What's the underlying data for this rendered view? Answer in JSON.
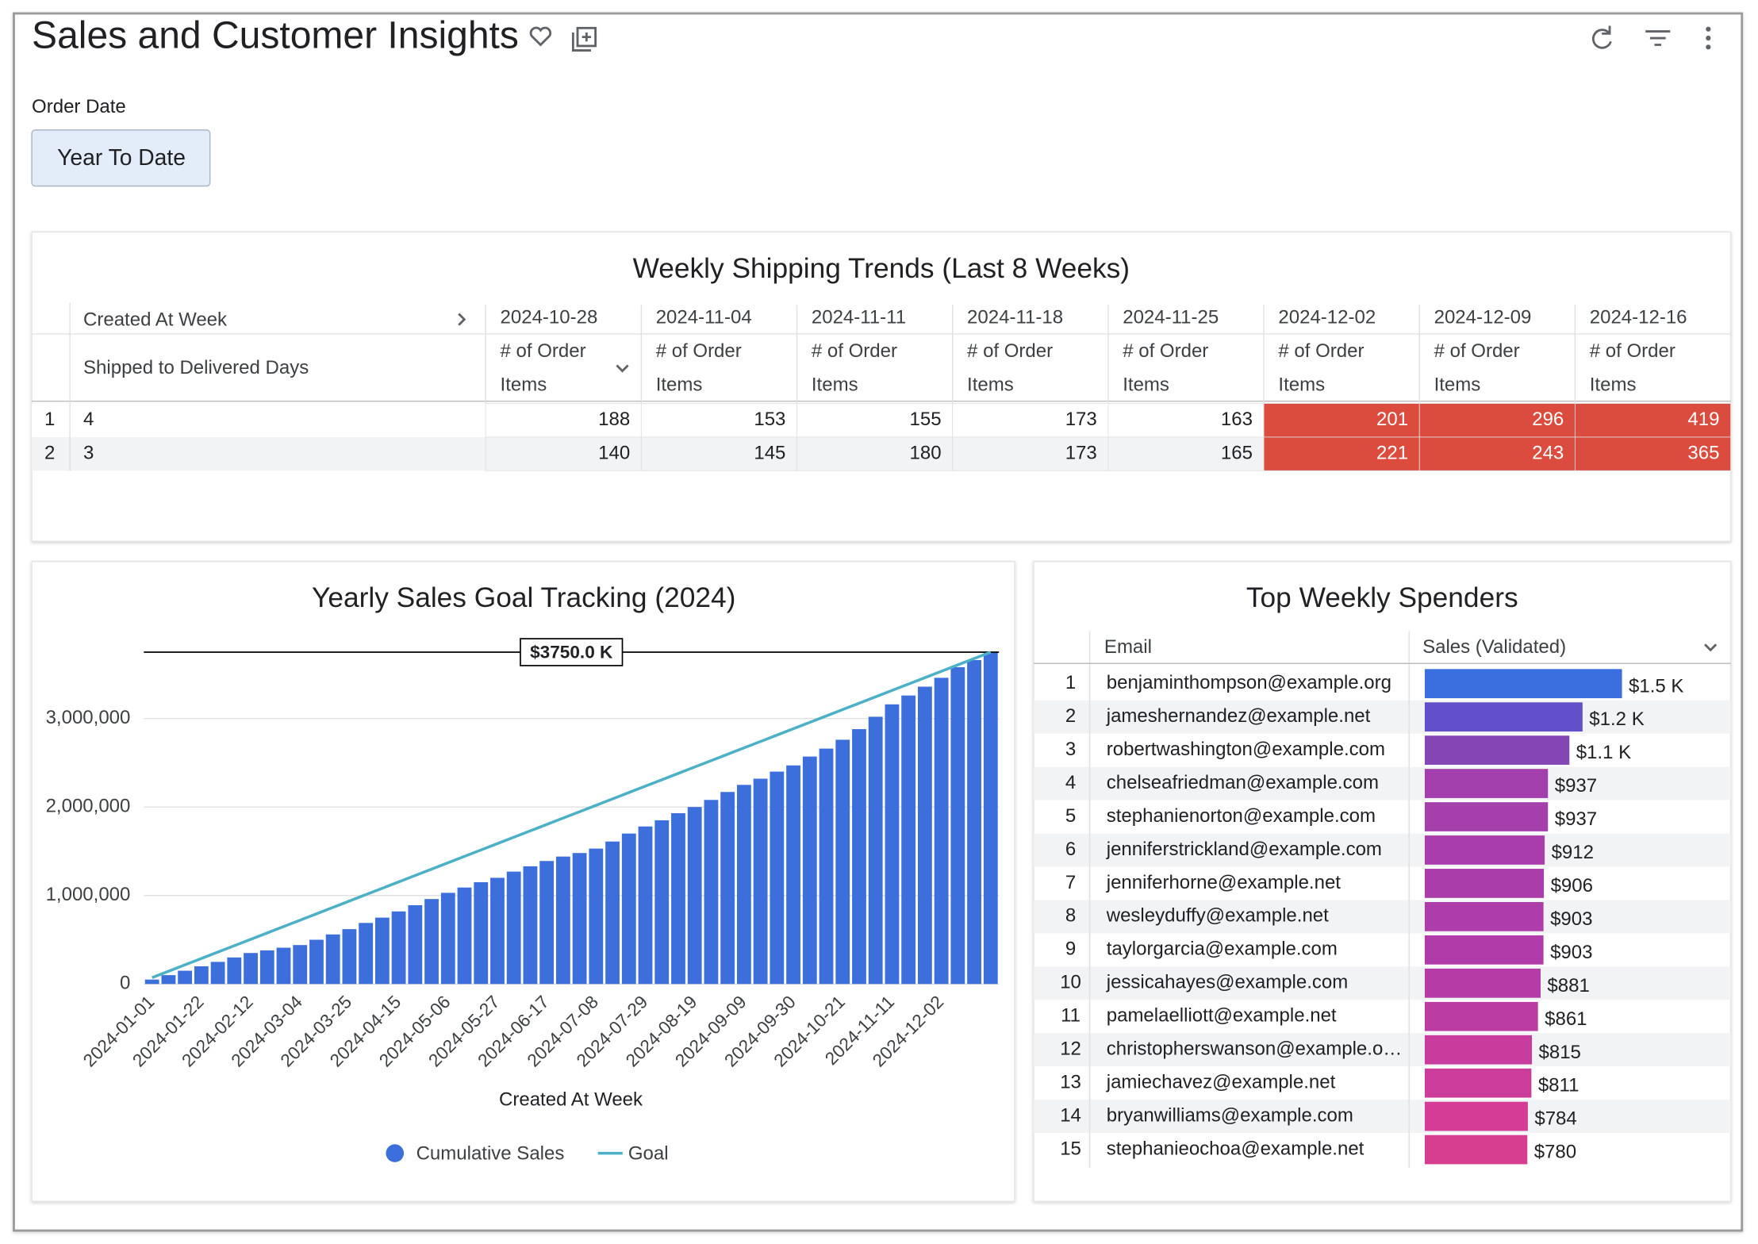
{
  "header": {
    "title": "Sales and Customer Insights",
    "filter_label": "Order Date",
    "filter_value": "Year To Date"
  },
  "shipping_table": {
    "title": "Weekly Shipping Trends (Last 8 Weeks)",
    "column_header": "Created At Week",
    "row_header": "Shipped to Delivered Days",
    "measure_lines": [
      "# of Order",
      "Items"
    ],
    "weeks": [
      "2024-10-28",
      "2024-11-04",
      "2024-11-11",
      "2024-11-18",
      "2024-11-25",
      "2024-12-02",
      "2024-12-09",
      "2024-12-16"
    ],
    "row_numbers": [
      1,
      2
    ],
    "rows": [
      4,
      3
    ],
    "values": [
      [
        188,
        153,
        155,
        173,
        163,
        201,
        296,
        419
      ],
      [
        140,
        145,
        180,
        173,
        165,
        221,
        243,
        365
      ]
    ],
    "cell_colors": [
      [
        "#ffffff",
        "#ffffff",
        "#ffffff",
        "#ffffff",
        "#ffffff",
        "#db4c3f",
        "#db4c3f",
        "#db4c3f"
      ],
      [
        "#f1f3f4",
        "#f1f3f4",
        "#f1f3f4",
        "#f1f3f4",
        "#f1f3f4",
        "#db4c3f",
        "#db4c3f",
        "#db4c3f"
      ]
    ]
  },
  "chart_data": {
    "type": "bar",
    "title": "Yearly Sales Goal Tracking (2024)",
    "x_label": "Created At Week",
    "categories": [
      "2024-01-01",
      null,
      null,
      "2024-01-22",
      null,
      null,
      "2024-02-12",
      null,
      null,
      "2024-03-04",
      null,
      null,
      "2024-03-25",
      null,
      null,
      "2024-04-15",
      null,
      null,
      "2024-05-06",
      null,
      null,
      "2024-05-27",
      null,
      null,
      "2024-06-17",
      null,
      null,
      "2024-07-08",
      null,
      null,
      "2024-07-29",
      null,
      null,
      "2024-08-19",
      null,
      null,
      "2024-09-09",
      null,
      null,
      "2024-09-30",
      null,
      null,
      "2024-10-21",
      null,
      null,
      "2024-11-11",
      null,
      null,
      "2024-12-02",
      null,
      null,
      null
    ],
    "series": [
      {
        "name": "Cumulative Sales",
        "color": "#3d6fdc",
        "values": [
          50000,
          100000,
          150000,
          200000,
          250000,
          300000,
          350000,
          380000,
          410000,
          440000,
          500000,
          560000,
          620000,
          690000,
          750000,
          820000,
          890000,
          960000,
          1030000,
          1090000,
          1150000,
          1200000,
          1270000,
          1330000,
          1390000,
          1440000,
          1480000,
          1530000,
          1610000,
          1700000,
          1780000,
          1850000,
          1930000,
          2000000,
          2080000,
          2170000,
          2250000,
          2320000,
          2400000,
          2470000,
          2570000,
          2660000,
          2760000,
          2880000,
          3020000,
          3160000,
          3260000,
          3360000,
          3460000,
          3580000,
          3660000,
          3750000
        ]
      },
      {
        "name": "Goal",
        "type": "line",
        "color": "#4cb0c6",
        "values": [
          72115,
          144231,
          216346,
          288462,
          360577,
          432692,
          504808,
          576923,
          649038,
          721154,
          793269,
          865385,
          937500,
          1009615,
          1081731,
          1153846,
          1225962,
          1298077,
          1370192,
          1442308,
          1514423,
          1586538,
          1658654,
          1730769,
          1802885,
          1875000,
          1947115,
          2019231,
          2091346,
          2163462,
          2235577,
          2307692,
          2379808,
          2451923,
          2524038,
          2596154,
          2668269,
          2740385,
          2812500,
          2884615,
          2956731,
          3028846,
          3100962,
          3173077,
          3245192,
          3317308,
          3389423,
          3461538,
          3533654,
          3605769,
          3677885,
          3750000
        ]
      }
    ],
    "ylim": [
      0,
      3850000
    ],
    "yticks": [
      0,
      {
        "value": 1000000,
        "label": "1,000,000"
      },
      {
        "value": 2000000,
        "label": "2,000,000"
      },
      {
        "value": 3000000,
        "label": "3,000,000"
      }
    ],
    "grid": true,
    "reference_line": {
      "value": 3750000,
      "label": "$3750.0 K",
      "color": "#000000"
    },
    "legend": "bottom"
  },
  "spenders_table": {
    "title": "Top Weekly Spenders",
    "columns": [
      "Email",
      "Sales (Validated)"
    ],
    "row_numbers": [
      1,
      2,
      3,
      4,
      5,
      6,
      7,
      8,
      9,
      10,
      11,
      12,
      13,
      14,
      15
    ],
    "emails": [
      "benjaminthompson@example.org",
      "jameshernandez@example.net",
      "robertwashington@example.com",
      "chelseafriedman@example.com",
      "stephanienorton@example.com",
      "jenniferstrickland@example.com",
      "jenniferhorne@example.net",
      "wesleyduffy@example.net",
      "taylorgarcia@example.com",
      "jessicahayes@example.com",
      "pamelaelliott@example.net",
      "christopherswanson@example.o…",
      "jamiechavez@example.net",
      "bryanwilliams@example.com",
      "stephanieochoa@example.net"
    ],
    "values": [
      1500,
      1200,
      1100,
      937,
      937,
      912,
      906,
      903,
      903,
      881,
      861,
      815,
      811,
      784,
      780
    ],
    "value_labels": [
      "$1.5 K",
      "$1.2 K",
      "$1.1 K",
      "$937",
      "$937",
      "$912",
      "$906",
      "$903",
      "$903",
      "$881",
      "$861",
      "$815",
      "$811",
      "$784",
      "$780"
    ],
    "colors": [
      "#3b6fe0",
      "#6150c8",
      "#8446b4",
      "#a23fac",
      "#a43fac",
      "#a93dab",
      "#ab3daa",
      "#ad3daa",
      "#b03ca9",
      "#b53ca6",
      "#bb3ca3",
      "#c83c9d",
      "#cc3c9a",
      "#d43c95",
      "#d83e8f"
    ]
  }
}
